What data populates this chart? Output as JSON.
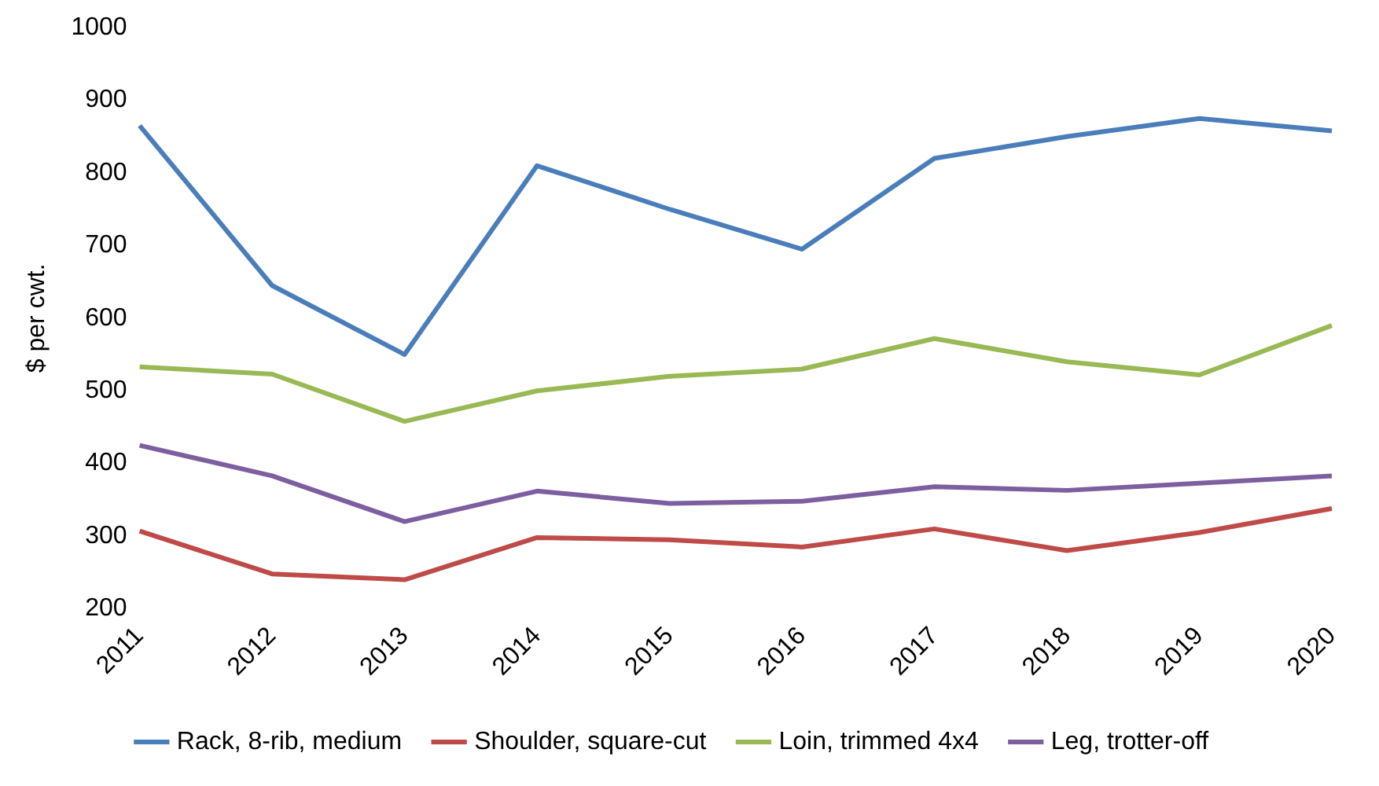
{
  "chart_data": {
    "type": "line",
    "ylabel": "$ per cwt.",
    "categories": [
      "2011",
      "2012",
      "2013",
      "2014",
      "2015",
      "2016",
      "2017",
      "2018",
      "2019",
      "2020"
    ],
    "series": [
      {
        "name": "Rack, 8-rib, medium",
        "color": "#4a7ebb",
        "values": [
          865,
          645,
          550,
          810,
          750,
          695,
          820,
          850,
          875,
          858
        ]
      },
      {
        "name": "Shoulder, square-cut",
        "color": "#be4b48",
        "values": [
          307,
          248,
          240,
          298,
          295,
          285,
          310,
          280,
          305,
          338
        ]
      },
      {
        "name": "Loin, trimmed 4x4",
        "color": "#98b954",
        "values": [
          533,
          523,
          458,
          500,
          520,
          530,
          572,
          540,
          522,
          590
        ]
      },
      {
        "name": "Leg, trotter-off",
        "color": "#7d5fa0",
        "values": [
          425,
          383,
          320,
          362,
          345,
          348,
          368,
          363,
          373,
          383
        ]
      }
    ],
    "ylim": [
      200,
      1000
    ],
    "yticks": [
      200,
      300,
      400,
      500,
      600,
      700,
      800,
      900,
      1000
    ],
    "grid": false,
    "legend": "bottom",
    "marker": "none",
    "line_style": "solid"
  }
}
